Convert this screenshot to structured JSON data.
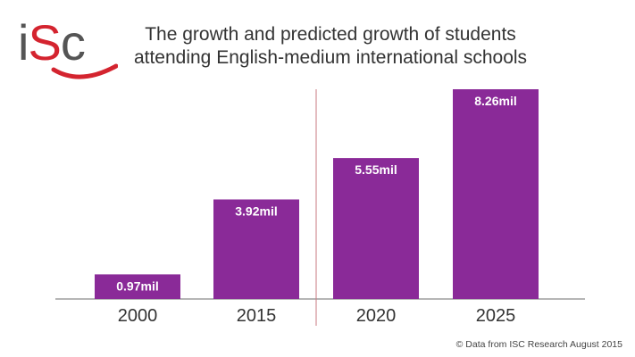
{
  "logo": {
    "letter_i": "i",
    "letter_s": "S",
    "letter_c": "c",
    "alt": "iSC"
  },
  "title_line1": "The growth and predicted growth of students",
  "title_line2": "attending English-medium international schools",
  "footer": "© Data from ISC Research August 2015",
  "colors": {
    "bar": "#8a2a98",
    "axis": "#8a8a8a",
    "divider": "#c87a82",
    "logo_red": "#d4242f",
    "logo_grey": "#555555"
  },
  "chart_data": {
    "type": "bar",
    "categories": [
      "2000",
      "2015",
      "2020",
      "2025"
    ],
    "values": [
      0.97,
      3.92,
      5.55,
      8.26
    ],
    "value_labels": [
      "0.97mil",
      "3.92mil",
      "5.55mil",
      "8.26mil"
    ],
    "title": "The growth and predicted growth of students attending English-medium international schools",
    "xlabel": "",
    "ylabel": "",
    "ylim": [
      0,
      8.26
    ],
    "grid": false,
    "legend": "none",
    "divider_between": [
      "2015",
      "2020"
    ]
  }
}
